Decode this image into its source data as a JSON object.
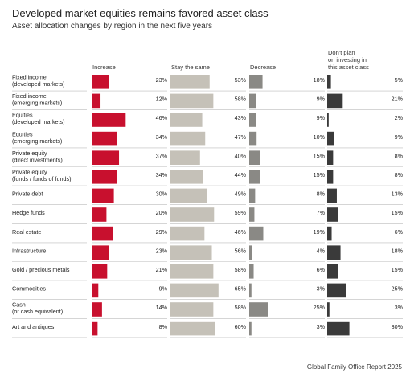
{
  "title": "Developed market equities remains favored asset class",
  "subtitle": "Asset allocation changes by region in the next five years",
  "source": "Global Family Office Report 2025",
  "colors": {
    "increase": "#c8102e",
    "stay": "#c5c1b8",
    "decrease": "#8a8985",
    "no_plan": "#3a3a3a",
    "rule": "#bcbcbc"
  },
  "chart_data": {
    "type": "bar",
    "title": "Developed market equities remains favored asset class",
    "subtitle": "Asset allocation changes by region in the next five years",
    "value_unit": "%",
    "categories": [
      "Fixed income\n(developed markets)",
      "Fixed income\n(emerging markets)",
      "Equities\n(developed markets)",
      "Equities\n(emerging markets)",
      "Private equity\n(direct investments)",
      "Private equity\n(funds / funds of funds)",
      "Private debt",
      "Hedge funds",
      "Real estate",
      "Infrastructure",
      "Gold / precious metals",
      "Commodities",
      "Cash\n(or cash equivalent)",
      "Art and antiques"
    ],
    "series": [
      {
        "name": "Increase",
        "values": [
          23,
          12,
          46,
          34,
          37,
          34,
          30,
          20,
          29,
          23,
          21,
          9,
          14,
          8
        ]
      },
      {
        "name": "Stay the same",
        "values": [
          53,
          58,
          43,
          47,
          40,
          44,
          49,
          59,
          46,
          56,
          58,
          65,
          58,
          60
        ]
      },
      {
        "name": "Decrease",
        "values": [
          18,
          9,
          9,
          10,
          15,
          15,
          8,
          7,
          19,
          4,
          6,
          3,
          25,
          3
        ]
      },
      {
        "name": "Don't plan\non investing in\nthis asset class",
        "values": [
          5,
          21,
          2,
          9,
          8,
          8,
          13,
          15,
          6,
          18,
          15,
          25,
          3,
          30
        ]
      }
    ]
  }
}
